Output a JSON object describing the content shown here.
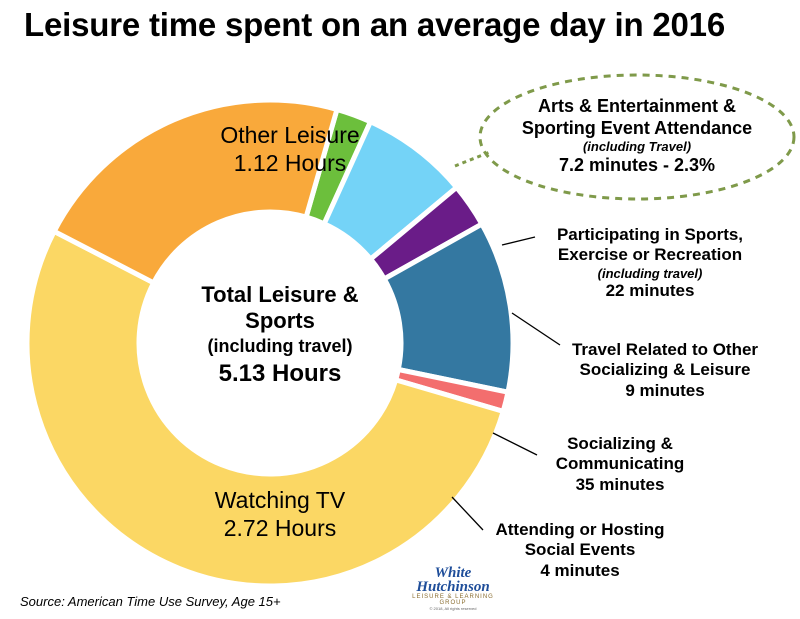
{
  "title": "Leisure time spent on an average day in 2016",
  "source": "Source: American Time Use Survey, Age 15+",
  "center": {
    "title_line1": "Total Leisure &",
    "title_line2": "Sports",
    "subtitle": "(including travel)",
    "value": "5.13 Hours"
  },
  "logo": {
    "line1": "White",
    "line2": "Hutchinson",
    "tagline": "LEISURE & LEARNING GROUP",
    "copyright": "© 2018, All rights reserved"
  },
  "chart_data": {
    "type": "pie",
    "variant": "donut",
    "title": "Leisure time spent on an average day in 2016",
    "unit": "minutes",
    "total_label": "5.13 Hours",
    "slices": [
      {
        "key": "arts",
        "name": "Arts & Entertainment & Sporting Event Attendance",
        "value": 7.2,
        "value_label": "7.2 minutes - 2.3%",
        "color": "#6cbf3c"
      },
      {
        "key": "sports",
        "name": "Participating in Sports, Exercise or Recreation",
        "value": 22,
        "value_label": "22 minutes",
        "color": "#74d3f7"
      },
      {
        "key": "travel",
        "name": "Travel Related to Other Socializing & Leisure",
        "value": 9,
        "value_label": "9 minutes",
        "color": "#6a1c88"
      },
      {
        "key": "social",
        "name": "Socializing & Communicating",
        "value": 35,
        "value_label": "35 minutes",
        "color": "#3478a1"
      },
      {
        "key": "events",
        "name": "Attending or Hosting Social Events",
        "value": 4,
        "value_label": "4 minutes",
        "color": "#f36e6e"
      },
      {
        "key": "tv",
        "name": "Watching TV",
        "value": 163.2,
        "value_label": "2.72 Hours",
        "color": "#fbd764"
      },
      {
        "key": "other",
        "name": "Other Leisure",
        "value": 67.2,
        "value_label": "1.12 Hours",
        "color": "#f9a93b"
      }
    ]
  },
  "labels": {
    "other": {
      "line1": "Other Leisure",
      "line2": "1.12 Hours"
    },
    "tv": {
      "line1": "Watching TV",
      "line2": "2.72 Hours"
    },
    "arts": {
      "line1": "Arts & Entertainment &",
      "line2": "Sporting Event Attendance",
      "note": "(including Travel)",
      "value": "7.2 minutes - 2.3%"
    },
    "sports": {
      "line1": "Participating in Sports,",
      "line2": "Exercise or Recreation",
      "note": "(including travel)",
      "value": "22 minutes"
    },
    "travel": {
      "line1": "Travel Related to Other",
      "line2": "Socializing & Leisure",
      "value": "9 minutes"
    },
    "social": {
      "line1": "Socializing &",
      "line2": "Communicating",
      "value": "35 minutes"
    },
    "events": {
      "line1": "Attending or Hosting",
      "line2": "Social Events",
      "value": "4 minutes"
    }
  }
}
